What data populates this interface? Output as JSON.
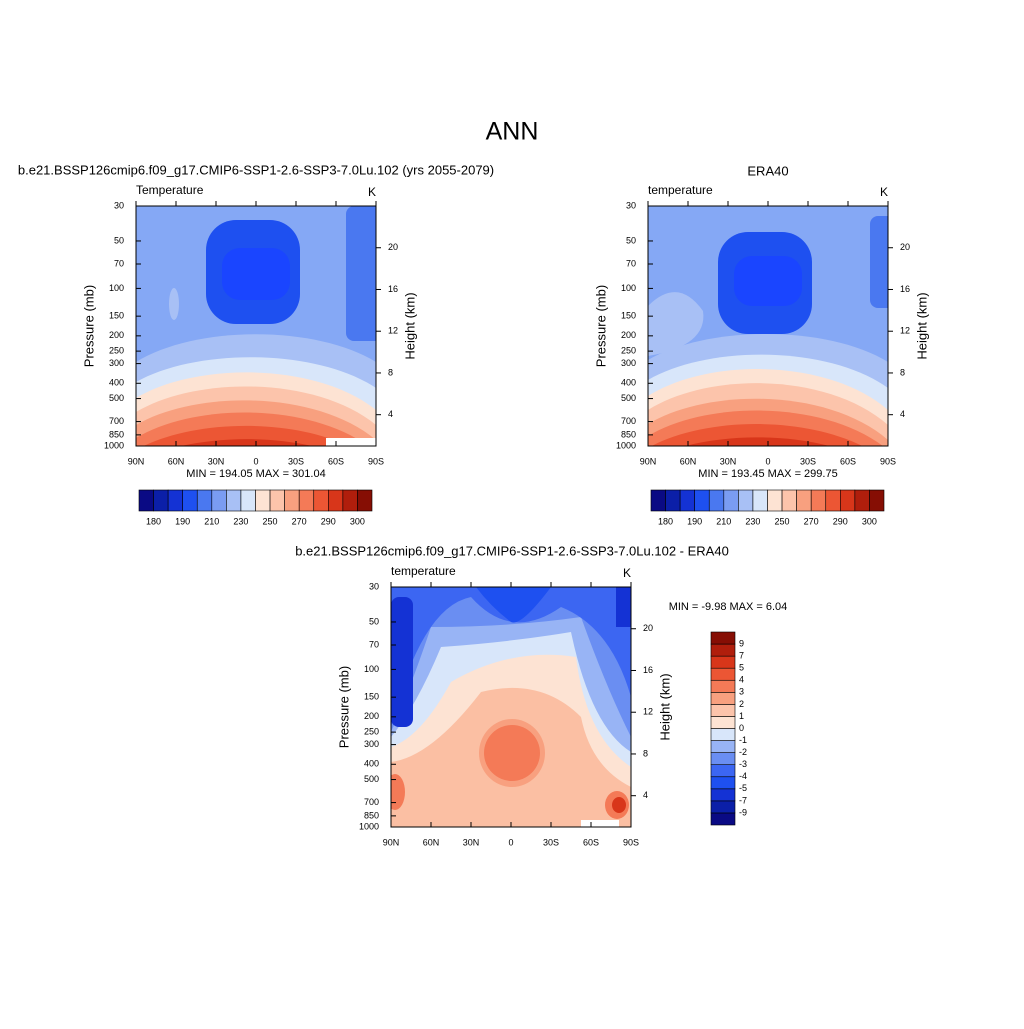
{
  "title": "ANN",
  "chart_data": [
    {
      "type": "contour",
      "title": "b.e21.BSSP126cmip6.f09_g17.CMIP6-SSP1-2.6-SSP3-7.0Lu.102 (yrs 2055-2079)",
      "subtitle": "Temperature",
      "units": "K",
      "ylabel": "Pressure (mb)",
      "y2label": "Height (km)",
      "xlim": [
        90,
        -90
      ],
      "xticks": [
        {
          "value": 90,
          "label": "90N"
        },
        {
          "value": 60,
          "label": "60N"
        },
        {
          "value": 30,
          "label": "30N"
        },
        0,
        {
          "value": -30,
          "label": "30S"
        },
        {
          "value": -60,
          "label": "60S"
        },
        {
          "value": -90,
          "label": "90S"
        }
      ],
      "ylim": [
        1000,
        30
      ],
      "yscale": "log",
      "yticks": [
        30,
        50,
        70,
        100,
        150,
        200,
        250,
        300,
        400,
        500,
        700,
        850,
        1000
      ],
      "y2lim": [
        1,
        24
      ],
      "y2ticks": [
        4,
        8,
        12,
        16,
        20
      ],
      "stats": "MIN = 194.05  MAX = 301.04",
      "colorbar": {
        "orientation": "horizontal",
        "colors": [
          "#0a0a84",
          "#0b1fa8",
          "#1432d4",
          "#1e50f0",
          "#4a78f0",
          "#7a9cf2",
          "#a8c0f5",
          "#d8e6fa",
          "#fde3d3",
          "#fcc4ab",
          "#f8a07f",
          "#f47a57",
          "#ec5634",
          "#d8361a",
          "#b01e0c",
          "#860e04"
        ],
        "labels": [
          180,
          190,
          210,
          230,
          250,
          270,
          290,
          300
        ]
      }
    },
    {
      "type": "contour",
      "title": "ERA40",
      "subtitle": "temperature",
      "units": "K",
      "ylabel": "Pressure (mb)",
      "y2label": "Height (km)",
      "xlim": [
        90,
        -90
      ],
      "xticks": [
        {
          "value": 90,
          "label": "90N"
        },
        {
          "value": 60,
          "label": "60N"
        },
        {
          "value": 30,
          "label": "30N"
        },
        0,
        {
          "value": -30,
          "label": "30S"
        },
        {
          "value": -60,
          "label": "60S"
        },
        {
          "value": -90,
          "label": "90S"
        }
      ],
      "ylim": [
        1000,
        30
      ],
      "yscale": "log",
      "yticks": [
        30,
        50,
        70,
        100,
        150,
        200,
        250,
        300,
        400,
        500,
        700,
        850,
        1000
      ],
      "y2lim": [
        1,
        24
      ],
      "y2ticks": [
        4,
        8,
        12,
        16,
        20
      ],
      "stats": "MIN = 193.45  MAX = 299.75",
      "colorbar": {
        "orientation": "horizontal",
        "colors": [
          "#0a0a84",
          "#0b1fa8",
          "#1432d4",
          "#1e50f0",
          "#4a78f0",
          "#7a9cf2",
          "#a8c0f5",
          "#d8e6fa",
          "#fde3d3",
          "#fcc4ab",
          "#f8a07f",
          "#f47a57",
          "#ec5634",
          "#d8361a",
          "#b01e0c",
          "#860e04"
        ],
        "labels": [
          180,
          190,
          210,
          230,
          250,
          270,
          290,
          300
        ]
      }
    },
    {
      "type": "contour",
      "title": "b.e21.BSSP126cmip6.f09_g17.CMIP6-SSP1-2.6-SSP3-7.0Lu.102 - ERA40",
      "subtitle": "temperature",
      "units": "K",
      "ylabel": "Pressure (mb)",
      "y2label": "Height (km)",
      "xlim": [
        90,
        -90
      ],
      "xticks": [
        {
          "value": 90,
          "label": "90N"
        },
        {
          "value": 60,
          "label": "60N"
        },
        {
          "value": 30,
          "label": "30N"
        },
        0,
        {
          "value": -30,
          "label": "30S"
        },
        {
          "value": -60,
          "label": "60S"
        },
        {
          "value": -90,
          "label": "90S"
        }
      ],
      "ylim": [
        1000,
        30
      ],
      "yscale": "log",
      "yticks": [
        30,
        50,
        70,
        100,
        150,
        200,
        250,
        300,
        400,
        500,
        700,
        850,
        1000
      ],
      "y2lim": [
        1,
        24
      ],
      "y2ticks": [
        4,
        8,
        12,
        16,
        20
      ],
      "stats": "MIN =  -9.98  MAX =   6.04",
      "colorbar": {
        "orientation": "vertical",
        "colors": [
          "#0a0a84",
          "#0b1fa8",
          "#1432d4",
          "#1e50f0",
          "#3c66f2",
          "#6a8ef2",
          "#98b4f5",
          "#d8e6fa",
          "#fde3d3",
          "#fcc4ab",
          "#f8a07f",
          "#f47a57",
          "#ec5634",
          "#d8361a",
          "#b01e0c",
          "#860e04"
        ],
        "labels": [
          -9,
          -7,
          -5,
          -4,
          -3,
          -2,
          -1,
          0,
          1,
          2,
          3,
          4,
          5,
          7,
          9
        ]
      }
    }
  ]
}
